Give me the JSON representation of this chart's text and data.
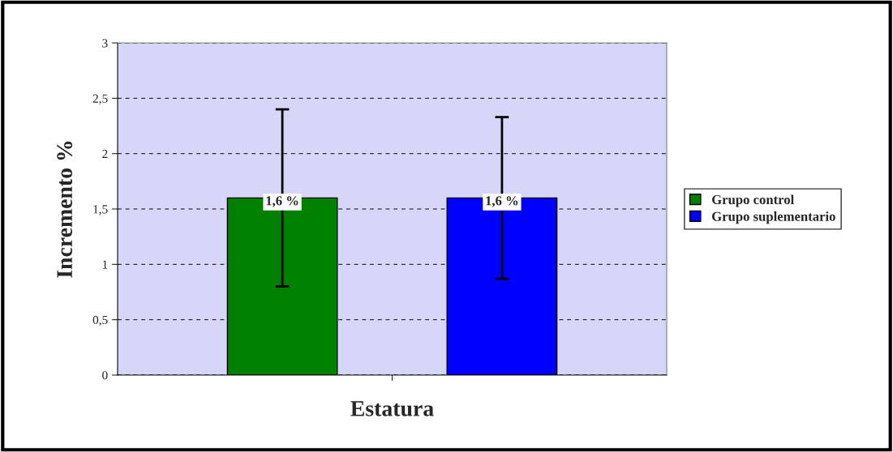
{
  "chart_data": {
    "type": "bar",
    "ylabel": "Incremento %",
    "xlabel": "Estatura",
    "categories": [
      null
    ],
    "series": [
      {
        "name": "Grupo control",
        "color": "#008000",
        "values": [
          1.6
        ],
        "errors": [
          0.8
        ],
        "value_labels": [
          "1,6 %"
        ]
      },
      {
        "name": "Grupo suplementario",
        "color": "#0000ff",
        "values": [
          1.6
        ],
        "errors": [
          0.73
        ],
        "value_labels": [
          "1,6 %"
        ]
      }
    ],
    "ylim": [
      0,
      3
    ],
    "yticks": [
      0,
      {
        "value": 0.5,
        "label": "0,5"
      },
      1,
      {
        "value": 1.5,
        "label": "1,5"
      },
      2,
      {
        "value": 2.5,
        "label": "2,5"
      },
      3
    ],
    "grid": "y",
    "legend": "right"
  }
}
